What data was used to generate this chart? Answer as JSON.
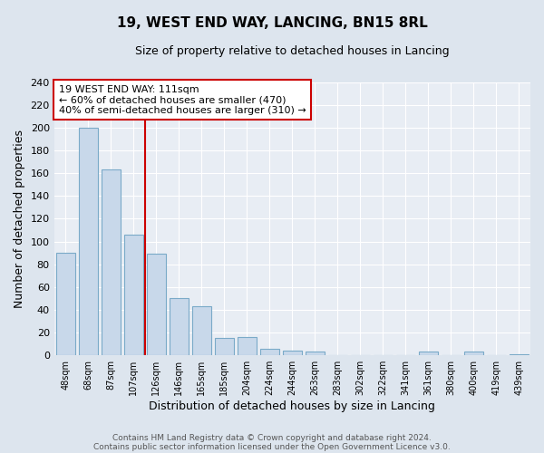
{
  "title": "19, WEST END WAY, LANCING, BN15 8RL",
  "subtitle": "Size of property relative to detached houses in Lancing",
  "xlabel": "Distribution of detached houses by size in Lancing",
  "ylabel": "Number of detached properties",
  "bar_labels": [
    "48sqm",
    "68sqm",
    "87sqm",
    "107sqm",
    "126sqm",
    "146sqm",
    "165sqm",
    "185sqm",
    "204sqm",
    "224sqm",
    "244sqm",
    "263sqm",
    "283sqm",
    "302sqm",
    "322sqm",
    "341sqm",
    "361sqm",
    "380sqm",
    "400sqm",
    "419sqm",
    "439sqm"
  ],
  "bar_values": [
    90,
    200,
    163,
    106,
    89,
    50,
    43,
    15,
    16,
    6,
    4,
    3,
    0,
    0,
    0,
    0,
    3,
    0,
    3,
    0,
    1
  ],
  "bar_color": "#c8d8ea",
  "bar_edgecolor": "#7aaac8",
  "vline_x": 3.5,
  "vline_color": "#cc0000",
  "annotation_title": "19 WEST END WAY: 111sqm",
  "annotation_line1": "← 60% of detached houses are smaller (470)",
  "annotation_line2": "40% of semi-detached houses are larger (310) →",
  "annotation_box_color": "#cc0000",
  "ylim": [
    0,
    240
  ],
  "yticks": [
    0,
    20,
    40,
    60,
    80,
    100,
    120,
    140,
    160,
    180,
    200,
    220,
    240
  ],
  "footer1": "Contains HM Land Registry data © Crown copyright and database right 2024.",
  "footer2": "Contains public sector information licensed under the Open Government Licence v3.0.",
  "bg_color": "#dde5ee",
  "plot_bg_color": "#e8edf4"
}
